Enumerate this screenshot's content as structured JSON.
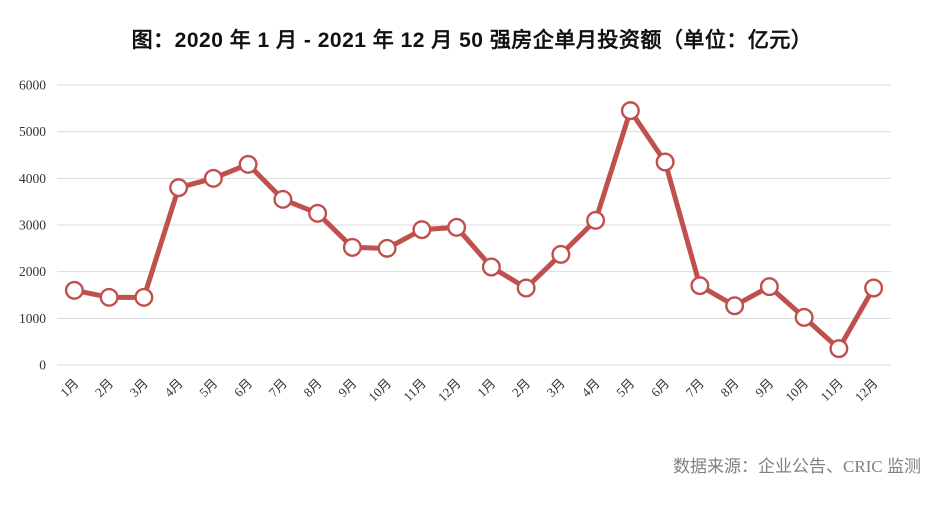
{
  "title": "图：2020 年 1 月 - 2021 年 12 月 50 强房企单月投资额（单位：亿元）",
  "source_note": "数据来源：企业公告、CRIC 监测",
  "colors": {
    "line": "#C0504D",
    "marker_fill": "#FFFFFF",
    "gridline": "#D9D9D9",
    "axis_text": "#333333",
    "title_text": "#111111",
    "source_text": "#808080"
  },
  "chart_data": {
    "type": "line",
    "title": "图：2020 年 1 月 - 2021 年 12 月 50 强房企单月投资额（单位：亿元）",
    "categories": [
      "1月",
      "2月",
      "3月",
      "4月",
      "5月",
      "6月",
      "7月",
      "8月",
      "9月",
      "10月",
      "11月",
      "12月",
      "1月",
      "2月",
      "3月",
      "4月",
      "5月",
      "6月",
      "7月",
      "8月",
      "9月",
      "10月",
      "11月",
      "12月"
    ],
    "values": [
      1600,
      1450,
      1450,
      3800,
      4000,
      4300,
      3550,
      3250,
      2520,
      2500,
      2900,
      2950,
      2100,
      1650,
      2370,
      3100,
      5450,
      4350,
      1700,
      1270,
      1680,
      1020,
      350,
      1650
    ],
    "xlabel": "",
    "ylabel": "",
    "ylim": [
      0,
      6000
    ],
    "yticks": [
      0,
      1000,
      2000,
      3000,
      4000,
      5000,
      6000
    ],
    "grid": "horizontal",
    "legend": "none",
    "x_tick_rotation": -45,
    "marker": "circle"
  }
}
